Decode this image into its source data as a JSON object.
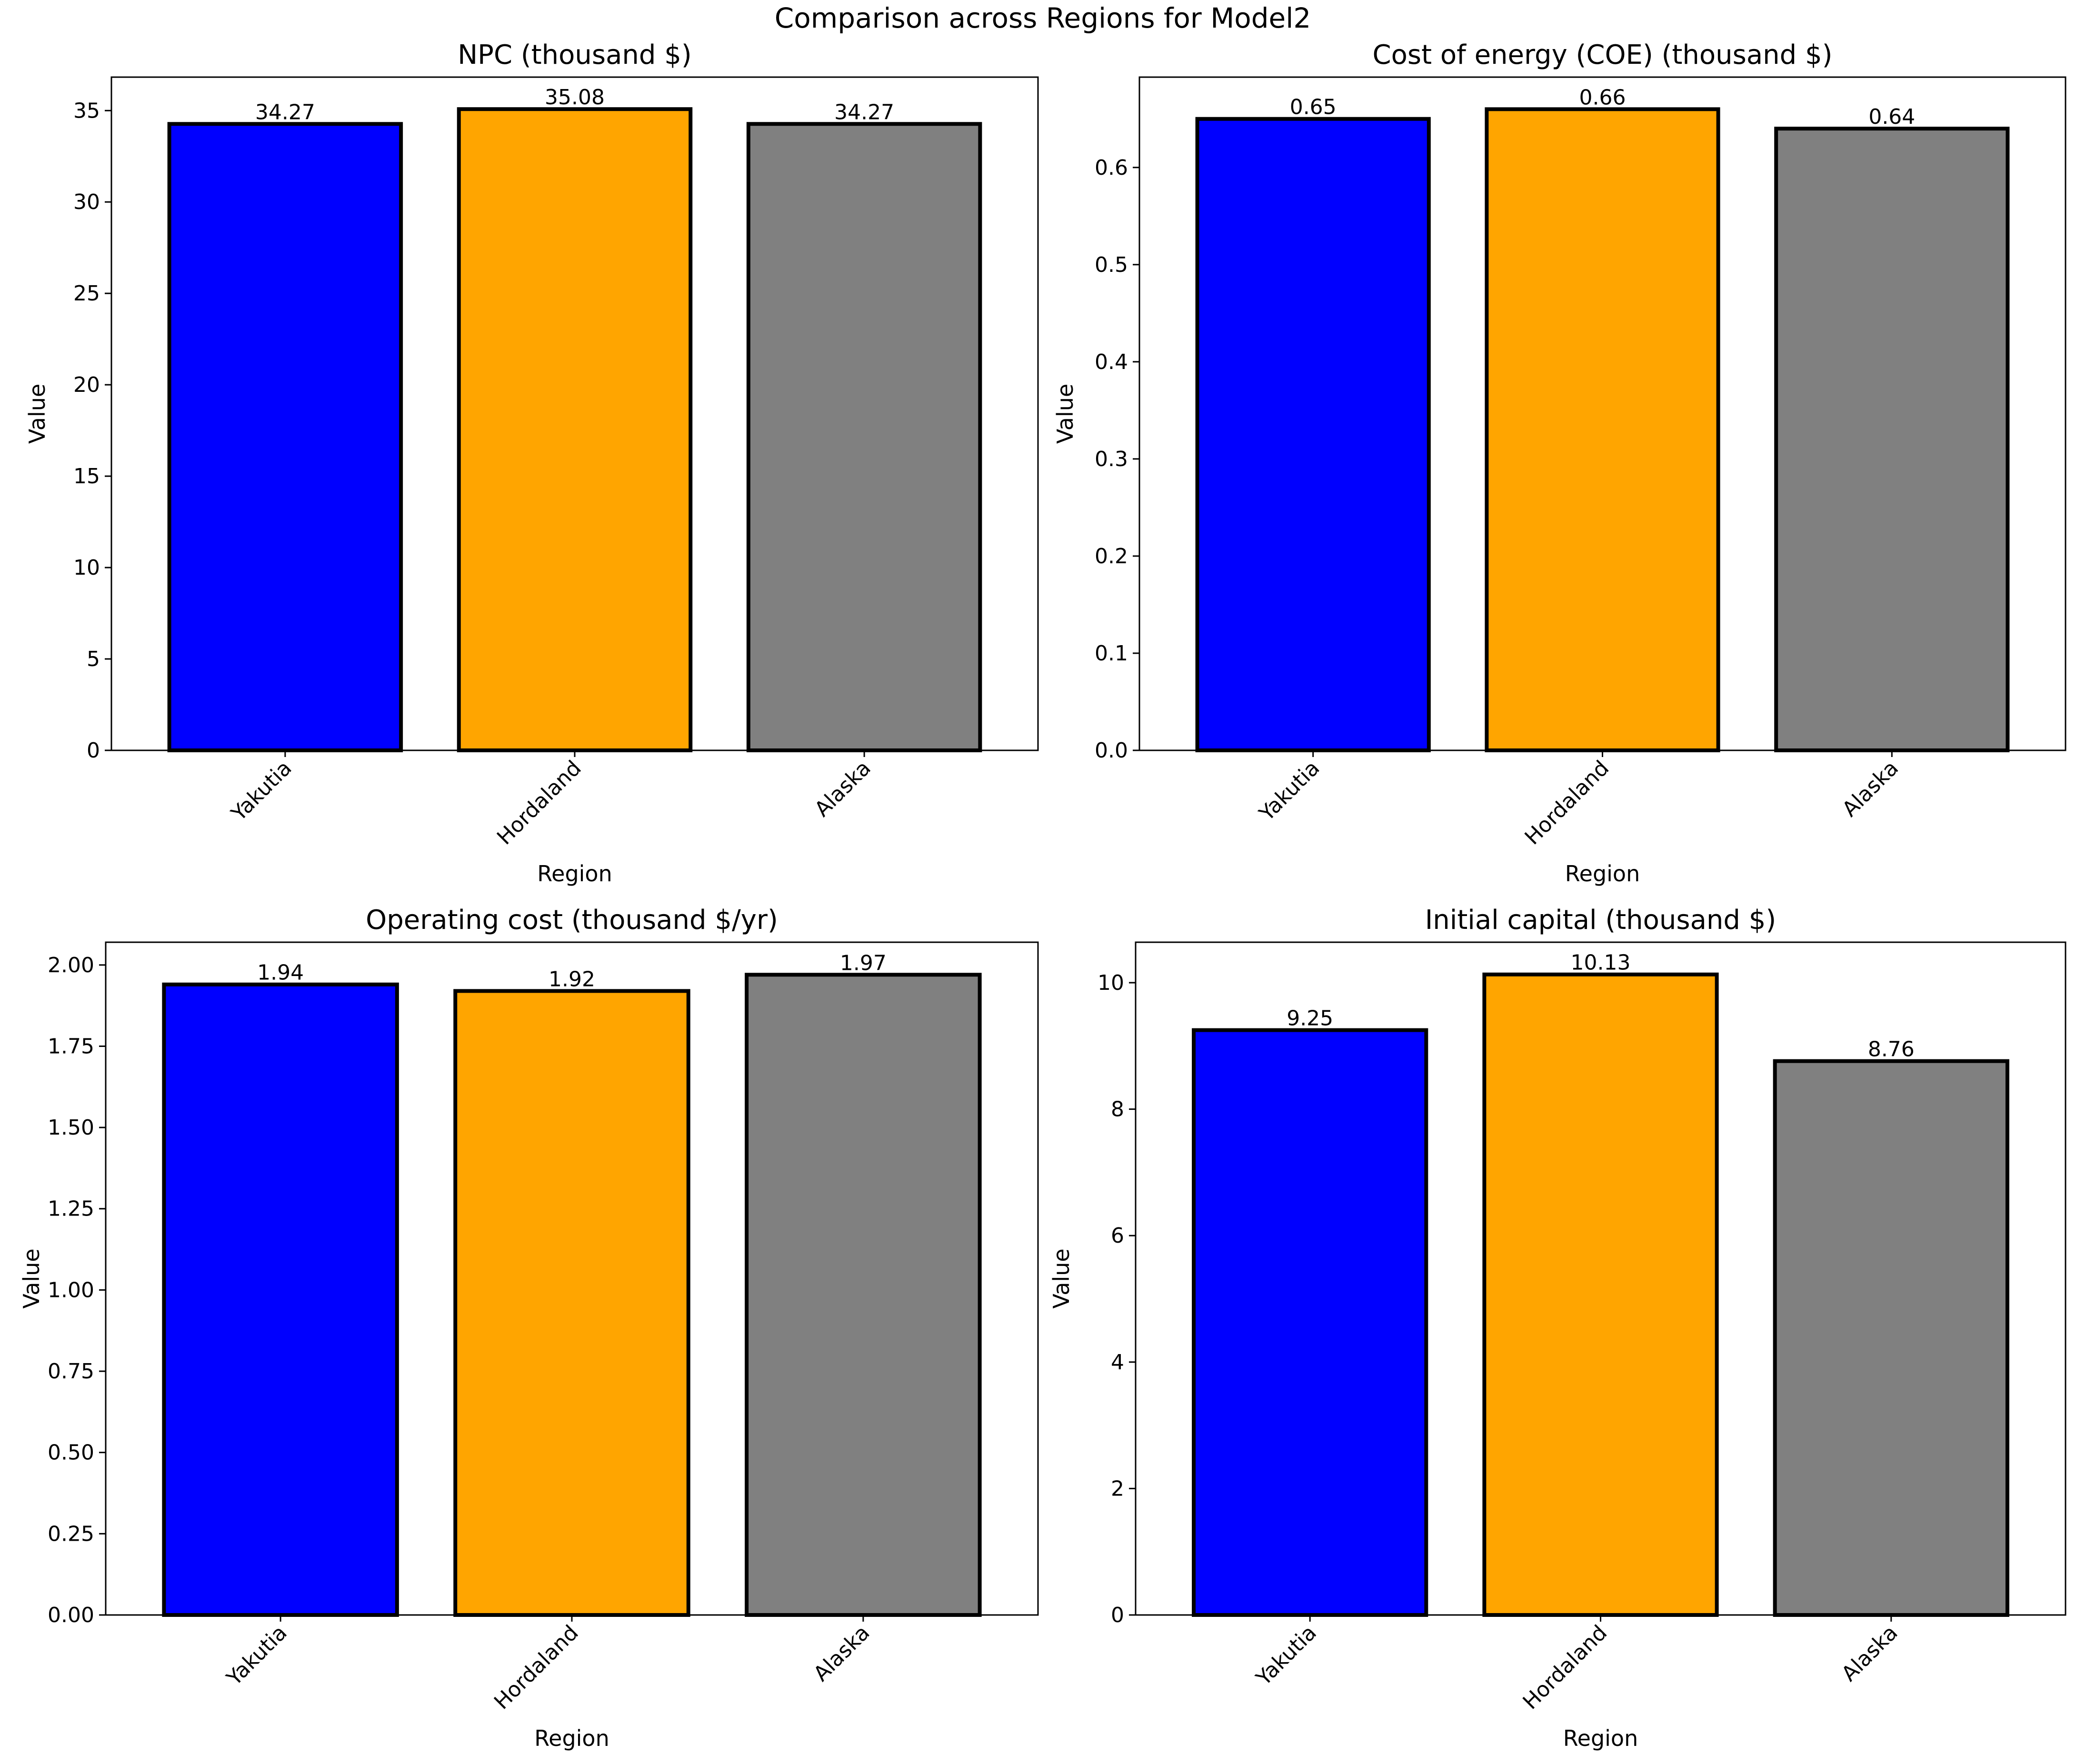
{
  "figure_title": "Comparison across Regions for Model2",
  "colors": {
    "Yakutia": "#0000ff",
    "Hordaland": "#ffa500",
    "Alaska": "#808080",
    "edge": "#000000",
    "axes": "#000000"
  },
  "chart_data": [
    {
      "type": "bar",
      "title": "NPC (thousand $)",
      "xlabel": "Region",
      "ylabel": "Value",
      "categories": [
        "Yakutia",
        "Hordaland",
        "Alaska"
      ],
      "values": [
        34.27,
        35.08,
        34.27
      ],
      "value_labels": [
        "34.27",
        "35.08",
        "34.27"
      ],
      "ylim": [
        0,
        36.83
      ],
      "yticks": [
        0,
        5,
        10,
        15,
        20,
        25,
        30,
        35
      ],
      "ytick_labels": [
        "0",
        "5",
        "10",
        "15",
        "20",
        "25",
        "30",
        "35"
      ]
    },
    {
      "type": "bar",
      "title": "Cost of energy (COE) (thousand $)",
      "xlabel": "Region",
      "ylabel": "Value",
      "categories": [
        "Yakutia",
        "Hordaland",
        "Alaska"
      ],
      "values": [
        0.65,
        0.66,
        0.64
      ],
      "value_labels": [
        "0.65",
        "0.66",
        "0.64"
      ],
      "ylim": [
        0,
        0.693
      ],
      "yticks": [
        0,
        0.1,
        0.2,
        0.3,
        0.4,
        0.5,
        0.6
      ],
      "ytick_labels": [
        "0.0",
        "0.1",
        "0.2",
        "0.3",
        "0.4",
        "0.5",
        "0.6"
      ]
    },
    {
      "type": "bar",
      "title": "Operating cost (thousand $/yr)",
      "xlabel": "Region",
      "ylabel": "Value",
      "categories": [
        "Yakutia",
        "Hordaland",
        "Alaska"
      ],
      "values": [
        1.94,
        1.92,
        1.97
      ],
      "value_labels": [
        "1.94",
        "1.92",
        "1.97"
      ],
      "ylim": [
        0,
        2.07
      ],
      "yticks": [
        0,
        0.25,
        0.5,
        0.75,
        1.0,
        1.25,
        1.5,
        1.75,
        2.0
      ],
      "ytick_labels": [
        "0.00",
        "0.25",
        "0.50",
        "0.75",
        "1.00",
        "1.25",
        "1.50",
        "1.75",
        "2.00"
      ]
    },
    {
      "type": "bar",
      "title": "Initial capital (thousand $)",
      "xlabel": "Region",
      "ylabel": "Value",
      "categories": [
        "Yakutia",
        "Hordaland",
        "Alaska"
      ],
      "values": [
        9.25,
        10.13,
        8.76
      ],
      "value_labels": [
        "9.25",
        "10.13",
        "8.76"
      ],
      "ylim": [
        0,
        10.64
      ],
      "yticks": [
        0,
        2,
        4,
        6,
        8,
        10
      ],
      "ytick_labels": [
        "0",
        "2",
        "4",
        "6",
        "8",
        "10"
      ]
    }
  ]
}
